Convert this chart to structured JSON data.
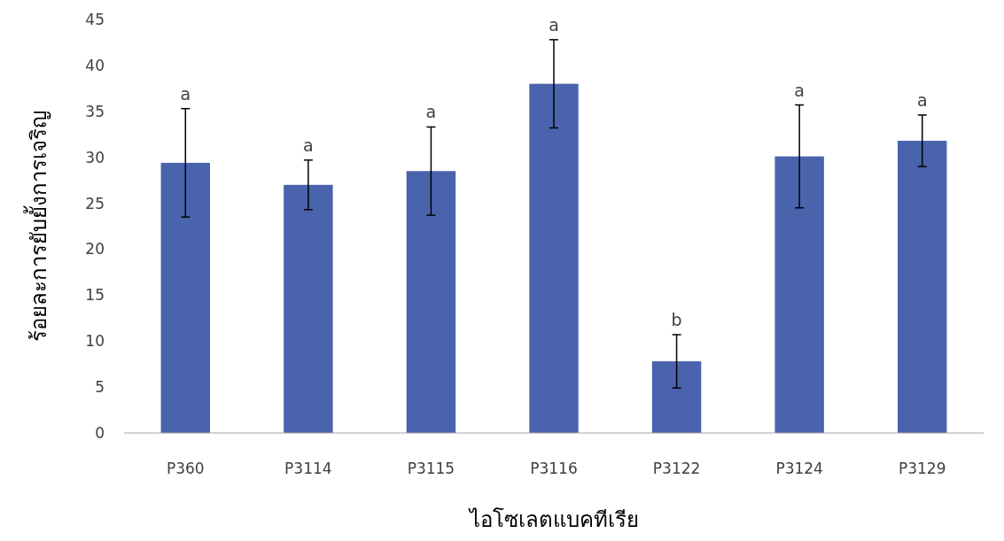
{
  "chart_data": {
    "type": "bar",
    "xlabel": "ไอโซเลตแบคทีเรีย",
    "ylabel": "ร้อยละการยับยั้งการเจริญ",
    "categories": [
      "P360",
      "P3114",
      "P3115",
      "P3116",
      "P3122",
      "P3124",
      "P3129"
    ],
    "values": [
      29.4,
      27.0,
      28.5,
      38.0,
      7.8,
      30.1,
      31.8
    ],
    "errors": [
      5.9,
      2.7,
      4.8,
      4.8,
      2.9,
      5.6,
      2.8
    ],
    "color": "#4a63ad",
    "ylim": [
      0,
      45
    ],
    "yticks": [
      0,
      5,
      10,
      15,
      20,
      25,
      30,
      35,
      40,
      45
    ],
    "grid": false,
    "annotations": [
      {
        "text": "a",
        "x": "P360",
        "y": 35.3
      },
      {
        "text": "a",
        "x": "P3114",
        "y": 29.7
      },
      {
        "text": "a",
        "x": "P3115",
        "y": 33.3
      },
      {
        "text": "a",
        "x": "P3116",
        "y": 42.8
      },
      {
        "text": "b",
        "x": "P3122",
        "y": 10.7
      },
      {
        "text": "a",
        "x": "P3124",
        "y": 35.7
      },
      {
        "text": "a",
        "x": "P3129",
        "y": 34.6
      }
    ]
  }
}
